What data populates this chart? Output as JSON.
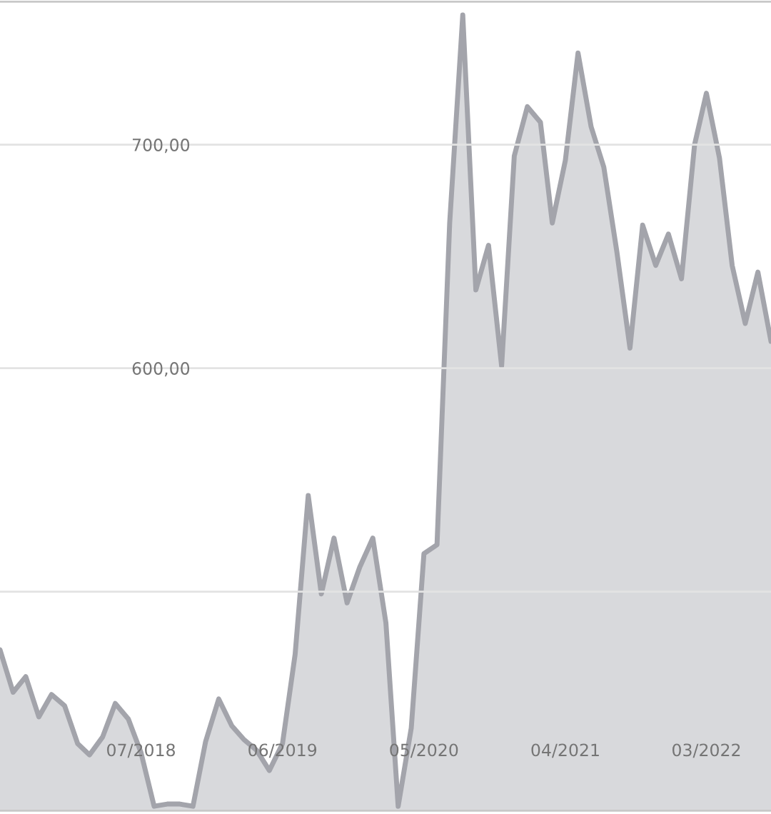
{
  "chart_data": {
    "type": "area",
    "x": [
      "2017-08",
      "2017-09",
      "2017-10",
      "2017-11",
      "2017-12",
      "2018-01",
      "2018-02",
      "2018-03",
      "2018-04",
      "2018-05",
      "2018-06",
      "2018-07",
      "2018-08",
      "2018-09",
      "2018-10",
      "2018-11",
      "2018-12",
      "2019-01",
      "2019-02",
      "2019-03",
      "2019-04",
      "2019-05",
      "2019-06",
      "2019-07",
      "2019-08",
      "2019-09",
      "2019-10",
      "2019-11",
      "2019-12",
      "2020-01",
      "2020-02",
      "2020-03",
      "2020-04",
      "2020-05",
      "2020-06",
      "2020-07",
      "2020-08",
      "2020-09",
      "2020-10",
      "2020-11",
      "2020-12",
      "2021-01",
      "2021-02",
      "2021-03",
      "2021-04",
      "2021-05",
      "2021-06",
      "2021-07",
      "2021-08",
      "2021-09",
      "2021-10",
      "2021-11",
      "2021-12",
      "2022-01",
      "2022-02",
      "2022-03",
      "2022-04",
      "2022-05",
      "2022-06",
      "2022-07",
      "2022-08"
    ],
    "series": [
      {
        "color": "#a3a4ab",
        "values": [
          474,
          455,
          462,
          444,
          454,
          449,
          432,
          427,
          435,
          450,
          443,
          428,
          404,
          405,
          405,
          404,
          433,
          452,
          440,
          434,
          429,
          420,
          432,
          472,
          543,
          499,
          524,
          495,
          511,
          524,
          486,
          404,
          439,
          517,
          521,
          665,
          758,
          635,
          655,
          601,
          695,
          717,
          710,
          665,
          693,
          741,
          708,
          690,
          652,
          609,
          664,
          646,
          660,
          640,
          700,
          723,
          694,
          646,
          620,
          643,
          612
        ]
      }
    ],
    "xlim": [
      "2017-08",
      "2022-08"
    ],
    "xticks": [
      {
        "value": "2018-07",
        "label": "07/2018"
      },
      {
        "value": "2019-06",
        "label": "06/2019"
      },
      {
        "value": "2020-05",
        "label": "05/2020"
      },
      {
        "value": "2021-04",
        "label": "04/2021"
      },
      {
        "value": "2022-03",
        "label": "03/2022"
      }
    ],
    "ylim": [
      402,
      764
    ],
    "yticks": [
      {
        "value": 500,
        "label": null
      },
      {
        "value": 600,
        "label": "600,00"
      },
      {
        "value": 700,
        "label": "700,00"
      }
    ],
    "grid": "y"
  }
}
